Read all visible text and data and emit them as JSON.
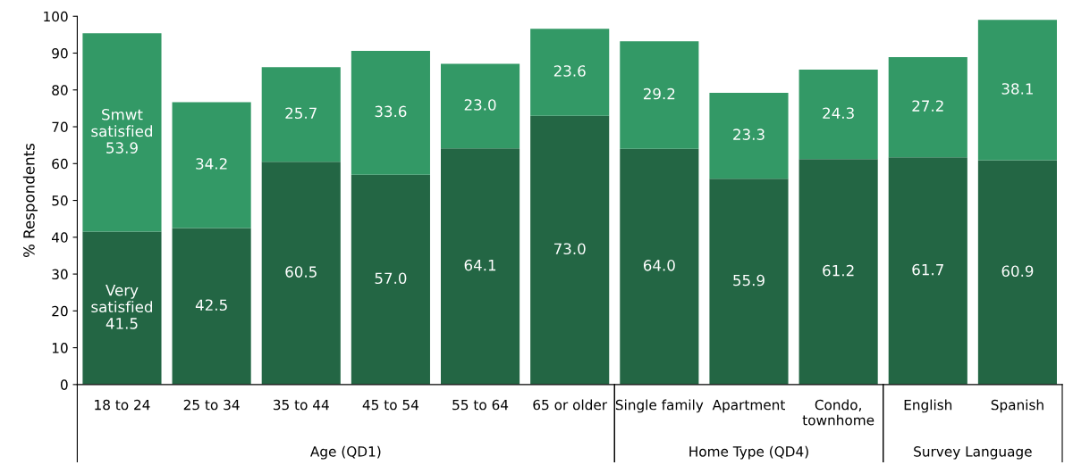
{
  "chart_data": {
    "type": "bar",
    "stacked": true,
    "ylabel": "% Respondents",
    "categories": [
      "18 to 24",
      "25 to 34",
      "35 to 44",
      "45 to 54",
      "55 to 64",
      "65 or older",
      "Single family",
      "Apartment",
      "Condo,\ntownhome",
      "English",
      "Spanish"
    ],
    "series": [
      {
        "name": "Very satisfied",
        "color": "#236644",
        "values": [
          41.5,
          42.5,
          60.5,
          57.0,
          64.1,
          73.0,
          64.0,
          55.9,
          61.2,
          61.7,
          60.9
        ],
        "value_labels": [
          "41.5",
          "42.5",
          "60.5",
          "57.0",
          "64.1",
          "73.0",
          "64.0",
          "55.9",
          "61.2",
          "61.7",
          "60.9"
        ]
      },
      {
        "name": "Smwt satisfied",
        "color": "#339966",
        "values": [
          53.9,
          34.2,
          25.7,
          33.6,
          23.0,
          23.6,
          29.2,
          23.3,
          24.3,
          27.2,
          38.1
        ],
        "value_labels": [
          "53.9",
          "34.2",
          "25.7",
          "33.6",
          "23.0",
          "23.6",
          "29.2",
          "23.3",
          "24.3",
          "27.2",
          "38.1"
        ]
      }
    ],
    "ylim": [
      0,
      100
    ],
    "yticks": [
      0,
      10,
      20,
      30,
      40,
      50,
      60,
      70,
      80,
      90,
      100
    ],
    "grid": false,
    "legend": false,
    "annotations": [
      "Age (QD1)",
      "Home Type (QD4)",
      "Survey Language"
    ]
  }
}
